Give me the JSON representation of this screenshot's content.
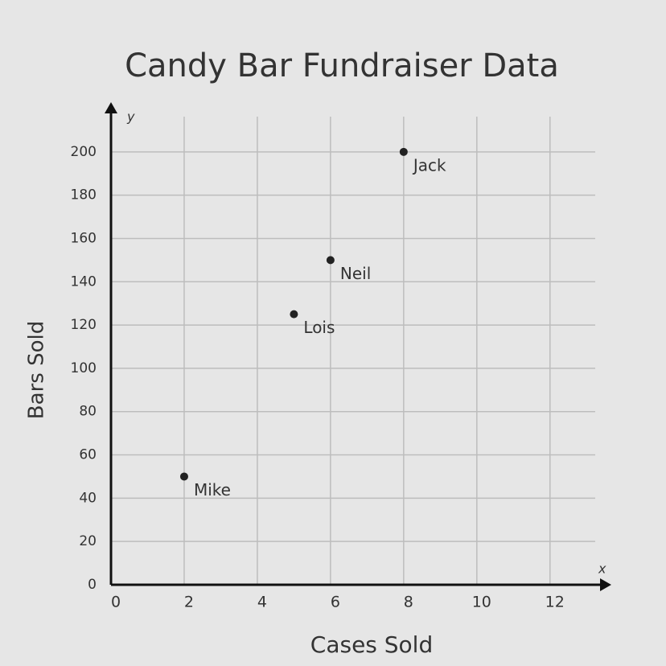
{
  "chart_data": {
    "type": "scatter",
    "title": "Candy Bar Fundraiser Data",
    "xlabel": "Cases Sold",
    "ylabel": "Bars Sold",
    "x_axis_symbol": "x",
    "y_axis_symbol": "y",
    "x": [
      2,
      5,
      6,
      8
    ],
    "values": [
      50,
      125,
      150,
      200
    ],
    "labels": [
      "Mike",
      "Lois",
      "Neil",
      "Jack"
    ],
    "color": "#222222",
    "xlim": [
      0,
      13.5
    ],
    "ylim": [
      0,
      220
    ],
    "xticks": [
      0,
      2,
      4,
      6,
      8,
      10,
      12
    ],
    "yticks": [
      0,
      20,
      40,
      60,
      80,
      100,
      120,
      140,
      160,
      180,
      200
    ],
    "grid": true
  }
}
